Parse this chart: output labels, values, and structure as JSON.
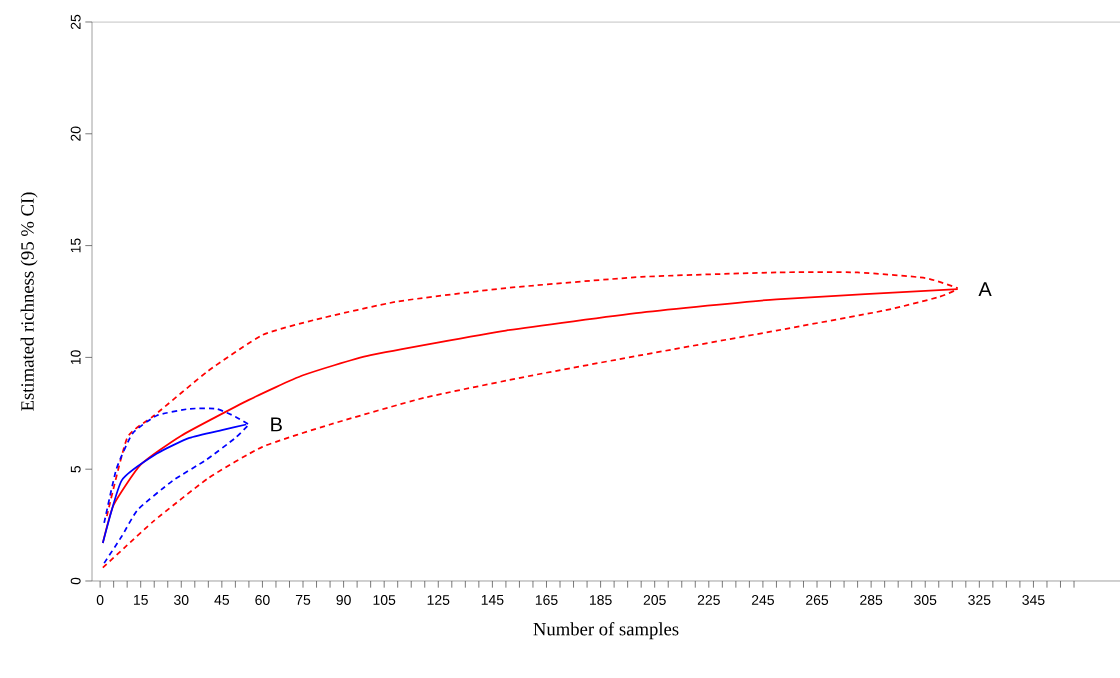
{
  "chart_data": {
    "type": "line",
    "xlabel": "Number of samples",
    "ylabel": "Estimated richness (95 % CI)",
    "xlim": [
      -3,
      377
    ],
    "ylim": [
      0,
      25
    ],
    "yticks": [
      0,
      5,
      10,
      15,
      20,
      25
    ],
    "xticks": [
      0,
      {
        "value": 5,
        "label": null
      },
      {
        "value": 10,
        "label": null
      },
      15,
      {
        "value": 20,
        "label": null
      },
      {
        "value": 25,
        "label": null
      },
      30,
      {
        "value": 35,
        "label": null
      },
      {
        "value": 40,
        "label": null
      },
      45,
      {
        "value": 50,
        "label": null
      },
      {
        "value": 55,
        "label": null
      },
      60,
      {
        "value": 65,
        "label": null
      },
      {
        "value": 70,
        "label": null
      },
      75,
      {
        "value": 80,
        "label": null
      },
      {
        "value": 85,
        "label": null
      },
      90,
      {
        "value": 95,
        "label": null
      },
      {
        "value": 100,
        "label": null
      },
      105,
      {
        "value": 110,
        "label": null
      },
      {
        "value": 115,
        "label": null
      },
      {
        "value": 120,
        "label": null
      },
      125,
      {
        "value": 130,
        "label": null
      },
      {
        "value": 135,
        "label": null
      },
      {
        "value": 140,
        "label": null
      },
      145,
      {
        "value": 150,
        "label": null
      },
      {
        "value": 155,
        "label": null
      },
      {
        "value": 160,
        "label": null
      },
      165,
      {
        "value": 170,
        "label": null
      },
      {
        "value": 175,
        "label": null
      },
      {
        "value": 180,
        "label": null
      },
      185,
      {
        "value": 190,
        "label": null
      },
      {
        "value": 195,
        "label": null
      },
      {
        "value": 200,
        "label": null
      },
      205,
      {
        "value": 210,
        "label": null
      },
      {
        "value": 215,
        "label": null
      },
      {
        "value": 220,
        "label": null
      },
      225,
      {
        "value": 230,
        "label": null
      },
      {
        "value": 235,
        "label": null
      },
      {
        "value": 240,
        "label": null
      },
      245,
      {
        "value": 250,
        "label": null
      },
      {
        "value": 255,
        "label": null
      },
      {
        "value": 260,
        "label": null
      },
      265,
      {
        "value": 270,
        "label": null
      },
      {
        "value": 275,
        "label": null
      },
      {
        "value": 280,
        "label": null
      },
      285,
      {
        "value": 290,
        "label": null
      },
      {
        "value": 295,
        "label": null
      },
      {
        "value": 300,
        "label": null
      },
      305,
      {
        "value": 310,
        "label": null
      },
      {
        "value": 315,
        "label": null
      },
      {
        "value": 320,
        "label": null
      },
      325,
      {
        "value": 330,
        "label": null
      },
      {
        "value": 335,
        "label": null
      },
      {
        "value": 340,
        "label": null
      },
      345,
      {
        "value": 350,
        "label": null
      },
      {
        "value": 355,
        "label": null
      },
      {
        "value": 360,
        "label": null
      }
    ],
    "grid": false,
    "series": [
      {
        "color": "#ff0000",
        "line_style": "solid",
        "x": [
          1,
          5,
          15,
          30,
          55,
          75,
          100,
          150,
          200,
          250,
          317
        ],
        "values": [
          1.7,
          3.4,
          5.2,
          6.5,
          8.1,
          9.2,
          10.1,
          11.2,
          12.0,
          12.6,
          13.05
        ]
      },
      {
        "color": "#ff0000",
        "line_style": "dashed",
        "x": [
          2.5,
          10,
          20,
          40,
          60,
          80,
          110,
          150,
          200,
          250,
          280,
          305,
          317
        ],
        "values": [
          2.9,
          6.4,
          7.4,
          9.4,
          11.0,
          11.7,
          12.5,
          13.1,
          13.6,
          13.8,
          13.8,
          13.55,
          13.1
        ]
      },
      {
        "color": "#ff0000",
        "line_style": "dashed",
        "x": [
          1,
          10,
          20,
          40,
          60,
          85,
          120,
          160,
          200,
          250,
          290,
          310,
          317
        ],
        "values": [
          0.6,
          1.6,
          2.7,
          4.6,
          6.0,
          7.0,
          8.2,
          9.2,
          10.1,
          11.2,
          12.1,
          12.7,
          13.05
        ]
      },
      {
        "color": "#0000ff",
        "line_style": "solid",
        "x": [
          1,
          8,
          21,
          33,
          45,
          54
        ],
        "values": [
          1.7,
          4.5,
          5.7,
          6.4,
          6.75,
          7.0
        ]
      },
      {
        "color": "#0000ff",
        "line_style": "dashed",
        "x": [
          1.5,
          6,
          12,
          21,
          33,
          43,
          50,
          55
        ],
        "values": [
          2.6,
          5.0,
          6.6,
          7.4,
          7.7,
          7.7,
          7.35,
          7.0
        ]
      },
      {
        "color": "#0000ff",
        "line_style": "dashed",
        "x": [
          1.5,
          8,
          14,
          27,
          39,
          50,
          55
        ],
        "values": [
          0.8,
          2.0,
          3.2,
          4.5,
          5.4,
          6.4,
          7.0
        ]
      }
    ],
    "annotations": [
      {
        "text": "A",
        "x": 317,
        "y": 13.05
      },
      {
        "text": "B",
        "x": 55,
        "y": 7.0
      }
    ]
  }
}
